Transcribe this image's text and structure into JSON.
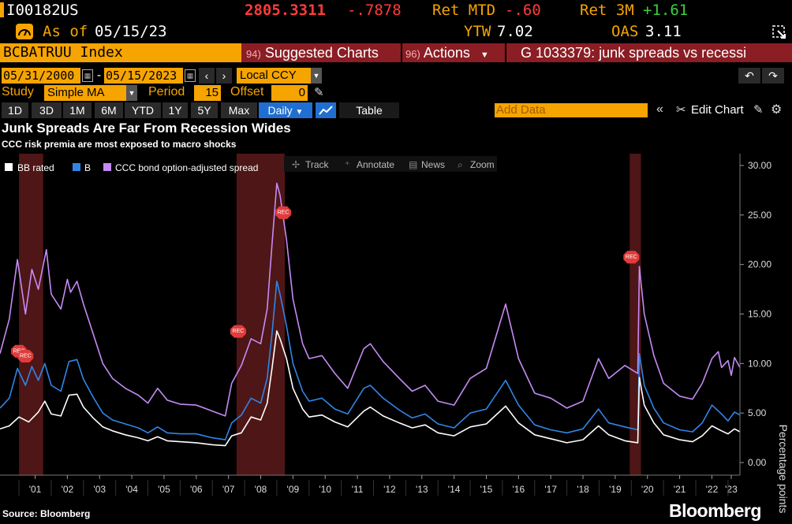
{
  "header": {
    "ticker": "I00182US",
    "price": "2805.3311",
    "change": "-.7878",
    "ret_mtd_label": "Ret MTD",
    "ret_mtd": "-.60",
    "ret_3m_label": "Ret 3M",
    "ret_3m": "+1.61",
    "as_of_label": "As of",
    "as_of_date": "05/15/23",
    "ytw_label": "YTW",
    "ytw": "7.02",
    "oas_label": "OAS",
    "oas": "3.11"
  },
  "toolbar": {
    "security": "BCBATRUU Index",
    "suggested_num": "94)",
    "suggested_label": "Suggested Charts",
    "actions_num": "96)",
    "actions_label": "Actions",
    "g_title": "G 1033379: junk spreads vs recessi"
  },
  "dates": {
    "start": "05/31/2000",
    "sep": "-",
    "end": "05/15/2023",
    "currency": "Local CCY"
  },
  "study": {
    "label": "Study",
    "value": "Simple MA",
    "period_label": "Period",
    "period": "15",
    "offset_label": "Offset",
    "offset": "0"
  },
  "ranges": {
    "buttons": [
      "1D",
      "3D",
      "1M",
      "6M",
      "YTD",
      "1Y",
      "5Y",
      "Max"
    ],
    "frequency": "Daily",
    "table_label": "Table",
    "add_data_placeholder": "Add Data",
    "edit_chart": "Edit Chart"
  },
  "chart_tools": {
    "track": "Track",
    "annotate": "Annotate",
    "news": "News",
    "zoom": "Zoom"
  },
  "footer": {
    "source": "Source: Bloomberg",
    "brand": "Bloomberg"
  },
  "colors": {
    "bb": "#ffffff",
    "b": "#2f86e8",
    "ccc": "#c58bf5",
    "recession": "#5c1a1a",
    "amber": "#f6a400"
  },
  "chart_data": {
    "type": "line",
    "title": "Junk Spreads Are Far From Recession Wides",
    "subtitle": "CCC risk premia are most exposed to macro shocks",
    "xlabel": "",
    "ylabel": "Percentage points",
    "xlim": [
      2000.41,
      2023.37
    ],
    "ylim": [
      0,
      30
    ],
    "y_ticks": [
      "0.00",
      "5.00",
      "10.00",
      "15.00",
      "20.00",
      "25.00",
      "30.00"
    ],
    "x_ticks": [
      {
        "label": "'01",
        "x": 2001.5
      },
      {
        "label": "'02",
        "x": 2002.5
      },
      {
        "label": "'03",
        "x": 2003.5
      },
      {
        "label": "'04",
        "x": 2004.5
      },
      {
        "label": "'05",
        "x": 2005.5
      },
      {
        "label": "'06",
        "x": 2006.5
      },
      {
        "label": "'07",
        "x": 2007.5
      },
      {
        "label": "'08",
        "x": 2008.5
      },
      {
        "label": "'09",
        "x": 2009.5
      },
      {
        "label": "'10",
        "x": 2010.5
      },
      {
        "label": "'11",
        "x": 2011.5
      },
      {
        "label": "'12",
        "x": 2012.5
      },
      {
        "label": "'13",
        "x": 2013.5
      },
      {
        "label": "'14",
        "x": 2014.5
      },
      {
        "label": "'15",
        "x": 2015.5
      },
      {
        "label": "'16",
        "x": 2016.5
      },
      {
        "label": "'17",
        "x": 2017.5
      },
      {
        "label": "'18",
        "x": 2018.5
      },
      {
        "label": "'19",
        "x": 2019.5
      },
      {
        "label": "'20",
        "x": 2020.5
      },
      {
        "label": "'21",
        "x": 2021.5
      },
      {
        "label": "'22",
        "x": 2022.5
      },
      {
        "label": "'23",
        "x": 2023.1
      }
    ],
    "legend": [
      "BB rated",
      "B",
      "CCC bond option-adjusted spread"
    ],
    "recessions": [
      [
        2001.0,
        2001.75
      ],
      [
        2007.75,
        2009.25
      ],
      [
        2019.95,
        2020.3
      ]
    ],
    "rec_markers": [
      {
        "label": "REC",
        "x": 2001.0,
        "y": 11.0
      },
      {
        "label": "REC",
        "x": 2001.2,
        "y": 10.5
      },
      {
        "label": "REC",
        "x": 2007.8,
        "y": 13.0
      },
      {
        "label": "REC",
        "x": 2009.2,
        "y": 25.0
      },
      {
        "label": "REC",
        "x": 2020.0,
        "y": 20.5
      }
    ],
    "series": [
      {
        "name": "BB rated",
        "color": "#ffffff",
        "points": [
          [
            2000.41,
            3.4
          ],
          [
            2000.7,
            3.7
          ],
          [
            2001.0,
            4.6
          ],
          [
            2001.3,
            4.1
          ],
          [
            2001.6,
            5.1
          ],
          [
            2001.8,
            6.2
          ],
          [
            2002.0,
            4.9
          ],
          [
            2002.3,
            4.7
          ],
          [
            2002.55,
            6.8
          ],
          [
            2002.8,
            6.9
          ],
          [
            2003.0,
            5.6
          ],
          [
            2003.3,
            4.5
          ],
          [
            2003.6,
            3.6
          ],
          [
            2003.9,
            3.2
          ],
          [
            2004.3,
            2.8
          ],
          [
            2004.7,
            2.5
          ],
          [
            2005.0,
            2.2
          ],
          [
            2005.3,
            2.6
          ],
          [
            2005.6,
            2.2
          ],
          [
            2006.0,
            2.1
          ],
          [
            2006.5,
            2.0
          ],
          [
            2007.0,
            1.8
          ],
          [
            2007.4,
            1.7
          ],
          [
            2007.6,
            2.7
          ],
          [
            2007.9,
            3.0
          ],
          [
            2008.2,
            4.6
          ],
          [
            2008.5,
            4.3
          ],
          [
            2008.7,
            6.0
          ],
          [
            2008.85,
            9.5
          ],
          [
            2009.0,
            13.3
          ],
          [
            2009.1,
            12.5
          ],
          [
            2009.3,
            10.5
          ],
          [
            2009.5,
            7.5
          ],
          [
            2009.8,
            5.4
          ],
          [
            2010.0,
            4.6
          ],
          [
            2010.4,
            4.8
          ],
          [
            2010.8,
            4.1
          ],
          [
            2011.2,
            3.6
          ],
          [
            2011.7,
            5.2
          ],
          [
            2011.9,
            5.6
          ],
          [
            2012.3,
            4.7
          ],
          [
            2012.8,
            4.0
          ],
          [
            2013.2,
            3.5
          ],
          [
            2013.6,
            3.8
          ],
          [
            2014.0,
            3.0
          ],
          [
            2014.5,
            2.7
          ],
          [
            2015.0,
            3.6
          ],
          [
            2015.5,
            3.9
          ],
          [
            2016.1,
            5.7
          ],
          [
            2016.5,
            4.0
          ],
          [
            2017.0,
            2.8
          ],
          [
            2017.5,
            2.4
          ],
          [
            2018.0,
            2.0
          ],
          [
            2018.5,
            2.3
          ],
          [
            2018.98,
            3.7
          ],
          [
            2019.3,
            2.8
          ],
          [
            2019.8,
            2.2
          ],
          [
            2020.2,
            2.0
          ],
          [
            2020.25,
            8.6
          ],
          [
            2020.4,
            5.8
          ],
          [
            2020.7,
            4.0
          ],
          [
            2021.0,
            2.8
          ],
          [
            2021.5,
            2.3
          ],
          [
            2021.9,
            2.1
          ],
          [
            2022.2,
            2.7
          ],
          [
            2022.5,
            3.7
          ],
          [
            2022.8,
            3.2
          ],
          [
            2023.0,
            2.9
          ],
          [
            2023.2,
            3.4
          ],
          [
            2023.37,
            3.1
          ]
        ]
      },
      {
        "name": "B",
        "color": "#2f86e8",
        "points": [
          [
            2000.41,
            5.5
          ],
          [
            2000.7,
            6.5
          ],
          [
            2000.95,
            9.5
          ],
          [
            2001.2,
            7.8
          ],
          [
            2001.4,
            9.7
          ],
          [
            2001.6,
            8.3
          ],
          [
            2001.8,
            10.0
          ],
          [
            2002.0,
            7.8
          ],
          [
            2002.3,
            7.2
          ],
          [
            2002.55,
            10.2
          ],
          [
            2002.8,
            10.4
          ],
          [
            2003.0,
            8.4
          ],
          [
            2003.3,
            6.6
          ],
          [
            2003.6,
            5.0
          ],
          [
            2003.9,
            4.3
          ],
          [
            2004.3,
            3.9
          ],
          [
            2004.7,
            3.5
          ],
          [
            2005.0,
            3.0
          ],
          [
            2005.3,
            3.6
          ],
          [
            2005.6,
            3.0
          ],
          [
            2006.0,
            2.9
          ],
          [
            2006.5,
            2.9
          ],
          [
            2007.0,
            2.5
          ],
          [
            2007.4,
            2.3
          ],
          [
            2007.6,
            4.0
          ],
          [
            2007.9,
            4.8
          ],
          [
            2008.2,
            6.5
          ],
          [
            2008.5,
            6.0
          ],
          [
            2008.7,
            8.5
          ],
          [
            2008.85,
            13.0
          ],
          [
            2009.0,
            18.3
          ],
          [
            2009.1,
            17.0
          ],
          [
            2009.3,
            13.8
          ],
          [
            2009.5,
            10.0
          ],
          [
            2009.8,
            7.2
          ],
          [
            2010.0,
            6.2
          ],
          [
            2010.4,
            6.5
          ],
          [
            2010.8,
            5.4
          ],
          [
            2011.2,
            4.9
          ],
          [
            2011.7,
            7.5
          ],
          [
            2011.9,
            7.8
          ],
          [
            2012.3,
            6.5
          ],
          [
            2012.8,
            5.3
          ],
          [
            2013.2,
            4.5
          ],
          [
            2013.6,
            4.9
          ],
          [
            2014.0,
            3.9
          ],
          [
            2014.5,
            3.5
          ],
          [
            2015.0,
            5.0
          ],
          [
            2015.5,
            5.4
          ],
          [
            2016.1,
            8.3
          ],
          [
            2016.5,
            5.8
          ],
          [
            2017.0,
            3.8
          ],
          [
            2017.5,
            3.3
          ],
          [
            2018.0,
            3.0
          ],
          [
            2018.5,
            3.4
          ],
          [
            2018.98,
            5.4
          ],
          [
            2019.3,
            4.0
          ],
          [
            2019.8,
            3.6
          ],
          [
            2020.2,
            3.3
          ],
          [
            2020.25,
            11.0
          ],
          [
            2020.4,
            7.8
          ],
          [
            2020.7,
            5.5
          ],
          [
            2021.0,
            4.0
          ],
          [
            2021.5,
            3.3
          ],
          [
            2021.9,
            3.1
          ],
          [
            2022.2,
            4.0
          ],
          [
            2022.5,
            5.8
          ],
          [
            2022.8,
            4.9
          ],
          [
            2023.0,
            4.2
          ],
          [
            2023.2,
            5.1
          ],
          [
            2023.37,
            4.8
          ]
        ]
      },
      {
        "name": "CCC bond option-adjusted spread",
        "color": "#c58bf5",
        "points": [
          [
            2000.41,
            11.0
          ],
          [
            2000.7,
            14.5
          ],
          [
            2000.95,
            20.5
          ],
          [
            2001.2,
            15.0
          ],
          [
            2001.4,
            19.5
          ],
          [
            2001.6,
            17.5
          ],
          [
            2001.85,
            21.5
          ],
          [
            2002.0,
            17.0
          ],
          [
            2002.3,
            15.5
          ],
          [
            2002.5,
            18.5
          ],
          [
            2002.6,
            17.2
          ],
          [
            2002.8,
            18.3
          ],
          [
            2003.0,
            16.0
          ],
          [
            2003.3,
            13.0
          ],
          [
            2003.6,
            10.0
          ],
          [
            2003.9,
            8.5
          ],
          [
            2004.3,
            7.5
          ],
          [
            2004.7,
            6.8
          ],
          [
            2005.0,
            6.0
          ],
          [
            2005.3,
            7.5
          ],
          [
            2005.6,
            6.3
          ],
          [
            2006.0,
            5.9
          ],
          [
            2006.5,
            5.8
          ],
          [
            2007.0,
            5.2
          ],
          [
            2007.4,
            4.7
          ],
          [
            2007.6,
            8.0
          ],
          [
            2007.9,
            9.8
          ],
          [
            2008.2,
            12.5
          ],
          [
            2008.5,
            12.0
          ],
          [
            2008.7,
            15.5
          ],
          [
            2008.85,
            22.0
          ],
          [
            2009.0,
            28.2
          ],
          [
            2009.1,
            27.0
          ],
          [
            2009.3,
            22.5
          ],
          [
            2009.5,
            16.5
          ],
          [
            2009.8,
            12.0
          ],
          [
            2010.0,
            10.5
          ],
          [
            2010.4,
            10.8
          ],
          [
            2010.8,
            9.0
          ],
          [
            2011.2,
            7.5
          ],
          [
            2011.7,
            11.5
          ],
          [
            2011.9,
            12.0
          ],
          [
            2012.3,
            10.2
          ],
          [
            2012.8,
            8.5
          ],
          [
            2013.2,
            7.2
          ],
          [
            2013.6,
            7.8
          ],
          [
            2014.0,
            6.2
          ],
          [
            2014.5,
            5.8
          ],
          [
            2015.0,
            8.5
          ],
          [
            2015.5,
            9.5
          ],
          [
            2016.1,
            16.0
          ],
          [
            2016.5,
            10.5
          ],
          [
            2017.0,
            7.0
          ],
          [
            2017.5,
            6.5
          ],
          [
            2018.0,
            5.5
          ],
          [
            2018.5,
            6.2
          ],
          [
            2018.98,
            10.5
          ],
          [
            2019.3,
            8.5
          ],
          [
            2019.8,
            9.8
          ],
          [
            2020.2,
            9.0
          ],
          [
            2020.25,
            19.8
          ],
          [
            2020.4,
            15.0
          ],
          [
            2020.7,
            10.8
          ],
          [
            2021.0,
            8.0
          ],
          [
            2021.5,
            6.7
          ],
          [
            2021.9,
            6.4
          ],
          [
            2022.2,
            8.0
          ],
          [
            2022.5,
            10.5
          ],
          [
            2022.7,
            11.2
          ],
          [
            2022.8,
            9.6
          ],
          [
            2023.0,
            10.3
          ],
          [
            2023.1,
            8.8
          ],
          [
            2023.2,
            10.6
          ],
          [
            2023.37,
            9.6
          ]
        ]
      }
    ]
  }
}
